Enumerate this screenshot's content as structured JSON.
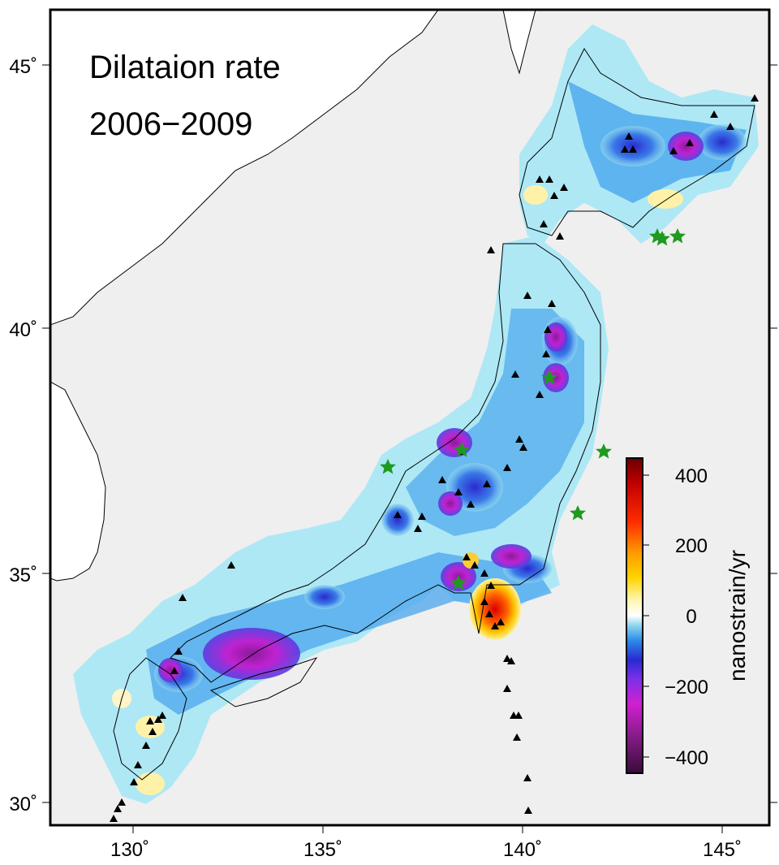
{
  "title": {
    "line1": "Dilataion rate",
    "line2": "2006−2009"
  },
  "axes": {
    "x_ticks": [
      "130˚",
      "135˚",
      "140˚",
      "145˚"
    ],
    "y_ticks": [
      "45˚",
      "40˚",
      "35˚",
      "30˚"
    ]
  },
  "colorbar": {
    "label": "nanostrain/yr",
    "ticks": [
      "400",
      "200",
      "0",
      "−200",
      "−400"
    ],
    "range": [
      -450,
      450
    ]
  },
  "colors": {
    "map_background": "#efefef",
    "land_outside": "#ffffff",
    "volcano": "#000000",
    "epicenter_star": "#1e9a1e",
    "strong_compression": "#7a1a7a",
    "compression": "#2a2ad0",
    "mild_compression": "#8fd8ef",
    "neutral": "#ffffff",
    "extension": "#ffd400",
    "strong_extension": "#d80000"
  },
  "legend_symbols": {
    "volcano": "triangle-icon",
    "earthquake": "star-icon"
  }
}
